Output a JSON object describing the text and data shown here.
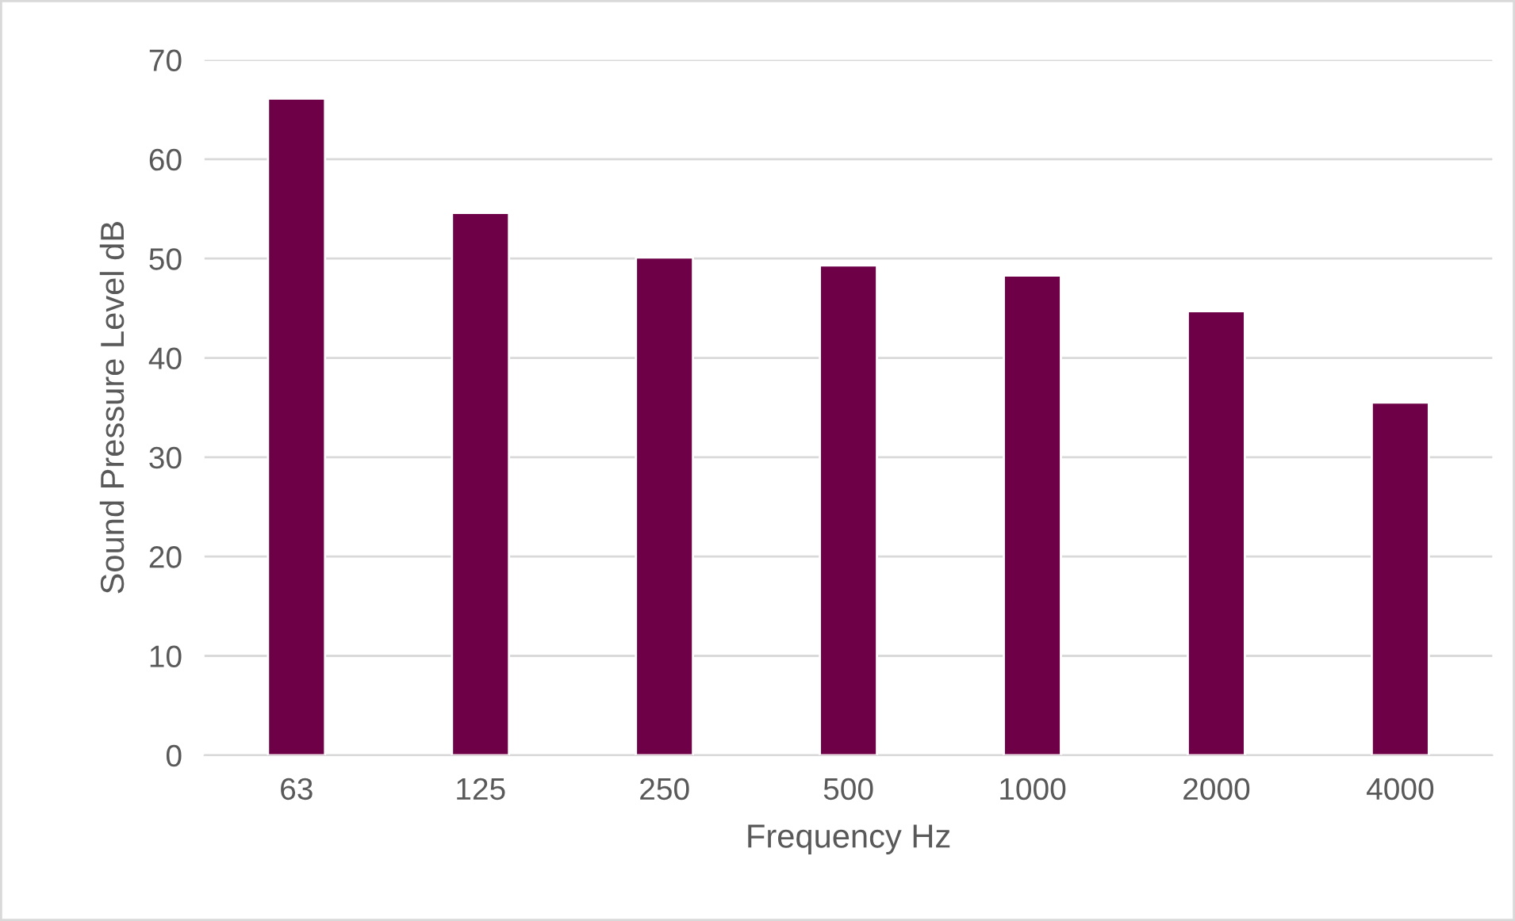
{
  "chart_data": {
    "type": "bar",
    "xlabel": "Frequency Hz",
    "ylabel": "Sound Pressure Level dB",
    "categories": [
      "63",
      "125",
      "250",
      "500",
      "1000",
      "2000",
      "4000"
    ],
    "values": [
      66.1,
      54.6,
      50.1,
      49.3,
      48.3,
      44.7,
      35.5
    ],
    "color": "#6d0046",
    "ylim": [
      0,
      70
    ],
    "yticks": [
      0,
      10,
      20,
      30,
      40,
      50,
      60,
      70
    ],
    "grid": "y",
    "legend": false
  }
}
